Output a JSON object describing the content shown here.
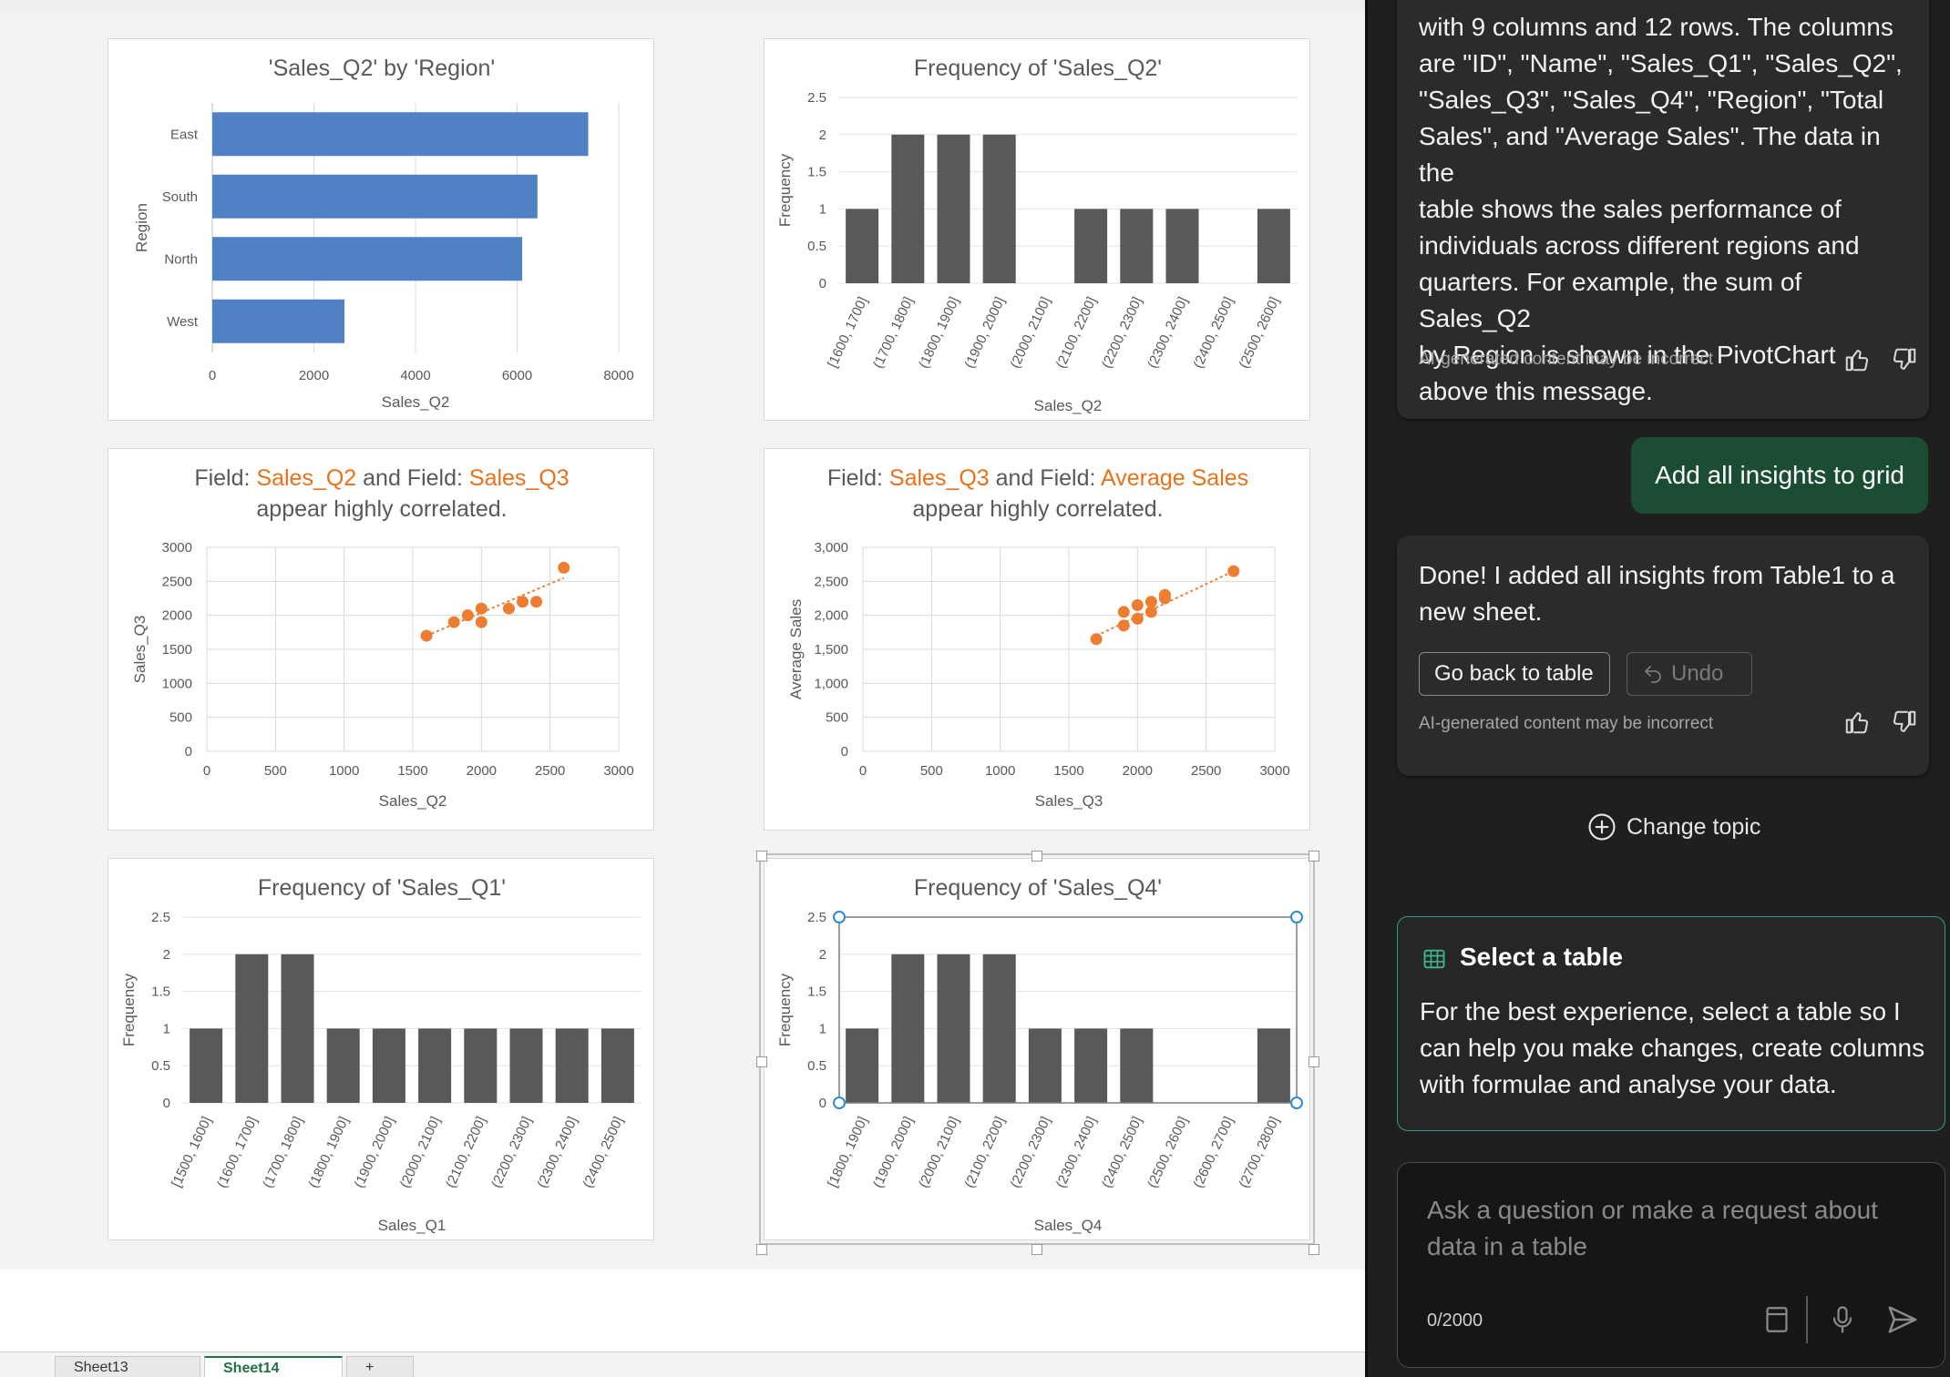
{
  "sheet": {
    "tabs": [
      "Sheet13",
      "Sheet14",
      "+"
    ],
    "active_tab_index": 1
  },
  "copilot": {
    "summary_text": "with 9 columns and 12 rows. The columns are \"ID\", \"Name\", \"Sales_Q1\", \"Sales_Q2\", \"Sales_Q3\", \"Sales_Q4\", \"Region\", \"Total Sales\", and \"Average Sales\". The data in the table shows the sales performance of individuals across different regions and quarters. For example, the sum of Sales_Q2 by Region is shown in the PivotChart above this message.",
    "summary_lines": [
      "with 9 columns and 12 rows. The columns",
      "are \"ID\", \"Name\", \"Sales_Q1\", \"Sales_Q2\",",
      "\"Sales_Q3\", \"Sales_Q4\", \"Region\", \"Total",
      "Sales\", and \"Average Sales\". The data in the",
      "table shows the sales performance of",
      "individuals across different regions and",
      "quarters. For example, the sum of Sales_Q2",
      "by Region is shown in the PivotChart",
      "above this message."
    ],
    "disclaimer": "AI-generated content may be incorrect",
    "user_message": "Add all insights to grid",
    "reply_lines": [
      "Done! I added all insights from Table1 to a",
      "new sheet."
    ],
    "go_back_label": "Go back to table",
    "undo_label": "Undo",
    "change_topic_label": "Change topic",
    "select_table": {
      "title": "Select a table",
      "body_lines": [
        "For the best experience, select a table so I",
        "can help you make changes, create columns",
        "with formulae and analyse your data."
      ]
    },
    "input": {
      "placeholder_lines": [
        "Ask a question or make a request about",
        "data in a table"
      ],
      "counter": "0/2000"
    },
    "colors": {
      "user_bubble": "#1b4d33",
      "select_border": "#2e9c8a",
      "pane_bg": "#1f1f1f"
    },
    "icons": [
      "thumbs-up-icon",
      "thumbs-down-icon",
      "undo-icon",
      "plus-circle-icon",
      "table-icon",
      "book-icon",
      "microphone-icon",
      "send-icon"
    ]
  },
  "chart_data": [
    {
      "id": "bar-q2-region",
      "type": "bar",
      "orientation": "horizontal",
      "title": "'Sales_Q2' by 'Region'",
      "categories": [
        "East",
        "South",
        "North",
        "West"
      ],
      "values": [
        7400,
        6400,
        6100,
        2600
      ],
      "xlabel": "Sales_Q2",
      "ylabel": "Region",
      "xlim": [
        0,
        8000
      ],
      "xticks": [
        "0",
        "2000",
        "4000",
        "6000",
        "8000"
      ],
      "color": "#4f81c4"
    },
    {
      "id": "hist-q2",
      "type": "bar",
      "title": "Frequency of 'Sales_Q2'",
      "categories": [
        "[1600, 1700]",
        "(1700, 1800]",
        "(1800, 1900]",
        "(1900, 2000]",
        "(2000, 2100]",
        "(2100, 2200]",
        "(2200, 2300]",
        "(2300, 2400]",
        "(2400, 2500]",
        "(2500, 2600]"
      ],
      "values": [
        1,
        2,
        2,
        2,
        0,
        1,
        1,
        1,
        0,
        1
      ],
      "xlabel": "Sales_Q2",
      "ylabel": "Frequency",
      "ylim": [
        0,
        2.5
      ],
      "yticks": [
        "0",
        "0.5",
        "1",
        "1.5",
        "2",
        "2.5"
      ],
      "color": "#595959"
    },
    {
      "id": "scatter-q2-q3",
      "type": "scatter",
      "title_parts": [
        "Field: ",
        "Sales_Q2",
        " and Field: ",
        "Sales_Q3"
      ],
      "title_line2": "appear highly correlated.",
      "points": [
        [
          1600,
          1700
        ],
        [
          1800,
          1900
        ],
        [
          1900,
          2000
        ],
        [
          2000,
          2100
        ],
        [
          2000,
          1900
        ],
        [
          2200,
          2100
        ],
        [
          2300,
          2200
        ],
        [
          2400,
          2200
        ],
        [
          2600,
          2700
        ]
      ],
      "trendline": [
        [
          1600,
          1700
        ],
        [
          2600,
          2550
        ]
      ],
      "xlabel": "Sales_Q2",
      "ylabel": "Sales_Q3",
      "xlim": [
        0,
        3000
      ],
      "ylim": [
        0,
        3000
      ],
      "xticks": [
        "0",
        "500",
        "1000",
        "1500",
        "2000",
        "2500",
        "3000"
      ],
      "yticks": [
        "0",
        "500",
        "1000",
        "1500",
        "2000",
        "2500",
        "3000"
      ],
      "color": "#ed7d31"
    },
    {
      "id": "scatter-q3-avg",
      "type": "scatter",
      "title_parts": [
        "Field: ",
        "Sales_Q3",
        " and Field: ",
        "Average Sales"
      ],
      "title_line2": "appear highly correlated.",
      "points": [
        [
          1700,
          1650
        ],
        [
          1900,
          1850
        ],
        [
          1900,
          2050
        ],
        [
          2000,
          1950
        ],
        [
          2000,
          2150
        ],
        [
          2100,
          2050
        ],
        [
          2100,
          2200
        ],
        [
          2200,
          2250
        ],
        [
          2200,
          2300
        ],
        [
          2700,
          2650
        ]
      ],
      "trendline": [
        [
          1700,
          1700
        ],
        [
          2700,
          2650
        ]
      ],
      "xlabel": "Sales_Q3",
      "ylabel": "Average Sales",
      "xlim": [
        0,
        3000
      ],
      "ylim": [
        0,
        3000
      ],
      "xticks": [
        "0",
        "500",
        "1000",
        "1500",
        "2000",
        "2500",
        "3000"
      ],
      "yticks": [
        "0",
        "500",
        "1,000",
        "1,500",
        "2,000",
        "2,500",
        "3,000"
      ],
      "color": "#ed7d31"
    },
    {
      "id": "hist-q1",
      "type": "bar",
      "title": "Frequency of 'Sales_Q1'",
      "categories": [
        "[1500, 1600]",
        "(1600, 1700]",
        "(1700, 1800]",
        "(1800, 1900]",
        "(1900, 2000]",
        "(2000, 2100]",
        "(2100, 2200]",
        "(2200, 2300]",
        "(2300, 2400]",
        "(2400, 2500]"
      ],
      "values": [
        1,
        2,
        2,
        1,
        1,
        1,
        1,
        1,
        1,
        1
      ],
      "xlabel": "Sales_Q1",
      "ylabel": "Frequency",
      "ylim": [
        0,
        2.5
      ],
      "yticks": [
        "0",
        "0.5",
        "1",
        "1.5",
        "2",
        "2.5"
      ],
      "color": "#595959"
    },
    {
      "id": "hist-q4",
      "type": "bar",
      "title": "Frequency of 'Sales_Q4'",
      "categories": [
        "[1800, 1900]",
        "(1900, 2000]",
        "(2000, 2100]",
        "(2100, 2200]",
        "(2200, 2300]",
        "(2300, 2400]",
        "(2400, 2500]",
        "(2500, 2600]",
        "(2600, 2700]",
        "(2700, 2800]"
      ],
      "values": [
        1,
        2,
        2,
        2,
        1,
        1,
        1,
        0,
        0,
        1
      ],
      "xlabel": "Sales_Q4",
      "ylabel": "Frequency",
      "ylim": [
        0,
        2.5
      ],
      "yticks": [
        "0",
        "0.5",
        "1",
        "1.5",
        "2",
        "2.5"
      ],
      "color": "#595959",
      "selected": true
    }
  ]
}
